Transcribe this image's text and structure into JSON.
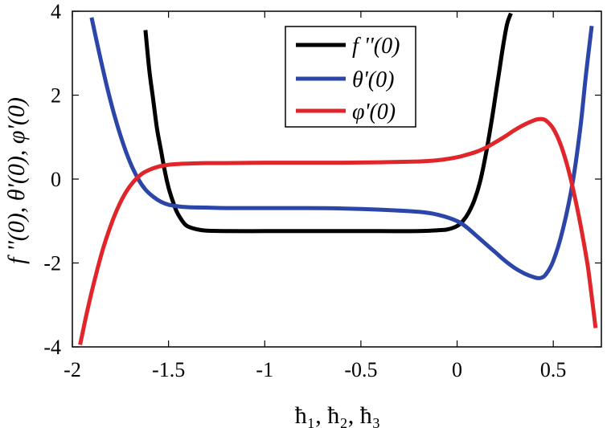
{
  "chart_data": {
    "type": "line",
    "title": "",
    "xlabel": "ħ₁, ħ₂, ħ₃",
    "ylabel": "f ''(0), θ'(0), φ'(0)",
    "xlim": [
      -2,
      0.75
    ],
    "ylim": [
      -4,
      4
    ],
    "xticks": [
      -2,
      -1.5,
      -1,
      -0.5,
      0,
      0.5
    ],
    "xtick_labels": [
      "-2",
      "-1.5",
      "-1",
      "-0.5",
      "0",
      "0.5"
    ],
    "yticks": [
      -4,
      -2,
      0,
      2,
      4
    ],
    "ytick_labels": [
      "-4",
      "-2",
      "0",
      "2",
      "4"
    ],
    "legend_position": "top-center",
    "series": [
      {
        "name": "f ''(0)",
        "color": "#000000",
        "x": [
          -1.62,
          -1.6,
          -1.58,
          -1.56,
          -1.54,
          -1.52,
          -1.5,
          -1.48,
          -1.46,
          -1.44,
          -1.42,
          -1.4,
          -1.35,
          -1.3,
          -1.2,
          -1.0,
          -0.8,
          -0.6,
          -0.4,
          -0.2,
          -0.1,
          -0.05,
          0.0,
          0.03,
          0.06,
          0.09,
          0.12,
          0.15,
          0.18,
          0.2,
          0.22,
          0.24,
          0.26,
          0.28
        ],
        "y": [
          3.55,
          2.6,
          1.9,
          1.2,
          0.7,
          0.2,
          -0.2,
          -0.5,
          -0.75,
          -0.92,
          -1.05,
          -1.13,
          -1.2,
          -1.23,
          -1.24,
          -1.24,
          -1.24,
          -1.24,
          -1.24,
          -1.24,
          -1.22,
          -1.2,
          -1.12,
          -1.0,
          -0.8,
          -0.5,
          -0.05,
          0.6,
          1.4,
          2.0,
          2.6,
          3.2,
          3.7,
          3.95
        ]
      },
      {
        "name": "θ'(0)",
        "color": "#2b45a8",
        "x": [
          -1.9,
          -1.86,
          -1.82,
          -1.78,
          -1.74,
          -1.7,
          -1.66,
          -1.62,
          -1.58,
          -1.54,
          -1.5,
          -1.45,
          -1.4,
          -1.3,
          -1.2,
          -1.0,
          -0.8,
          -0.6,
          -0.4,
          -0.2,
          -0.1,
          0.0,
          0.05,
          0.1,
          0.15,
          0.2,
          0.25,
          0.3,
          0.35,
          0.4,
          0.43,
          0.46,
          0.5,
          0.55,
          0.6,
          0.64,
          0.67,
          0.7
        ],
        "y": [
          3.85,
          3.0,
          2.2,
          1.5,
          0.9,
          0.4,
          0.02,
          -0.25,
          -0.42,
          -0.54,
          -0.61,
          -0.65,
          -0.67,
          -0.68,
          -0.69,
          -0.69,
          -0.69,
          -0.7,
          -0.73,
          -0.78,
          -0.85,
          -1.0,
          -1.15,
          -1.35,
          -1.55,
          -1.75,
          -1.95,
          -2.12,
          -2.25,
          -2.34,
          -2.36,
          -2.28,
          -1.95,
          -1.2,
          -0.1,
          1.2,
          2.5,
          3.65
        ]
      },
      {
        "name": "φ'(0)",
        "color": "#e0262a",
        "x": [
          -1.96,
          -1.93,
          -1.9,
          -1.87,
          -1.84,
          -1.8,
          -1.76,
          -1.72,
          -1.68,
          -1.64,
          -1.6,
          -1.55,
          -1.5,
          -1.45,
          -1.4,
          -1.3,
          -1.2,
          -1.0,
          -0.8,
          -0.6,
          -0.4,
          -0.2,
          -0.1,
          0.0,
          0.05,
          0.1,
          0.15,
          0.2,
          0.25,
          0.3,
          0.35,
          0.4,
          0.43,
          0.46,
          0.5,
          0.54,
          0.58,
          0.62,
          0.65,
          0.68,
          0.7,
          0.72
        ],
        "y": [
          -3.95,
          -3.3,
          -2.7,
          -2.15,
          -1.65,
          -1.1,
          -0.65,
          -0.3,
          -0.05,
          0.12,
          0.22,
          0.3,
          0.34,
          0.36,
          0.37,
          0.38,
          0.38,
          0.39,
          0.39,
          0.39,
          0.4,
          0.42,
          0.45,
          0.52,
          0.58,
          0.65,
          0.75,
          0.88,
          1.02,
          1.17,
          1.3,
          1.4,
          1.43,
          1.4,
          1.2,
          0.8,
          0.2,
          -0.6,
          -1.3,
          -2.1,
          -2.8,
          -3.55
        ]
      }
    ]
  }
}
